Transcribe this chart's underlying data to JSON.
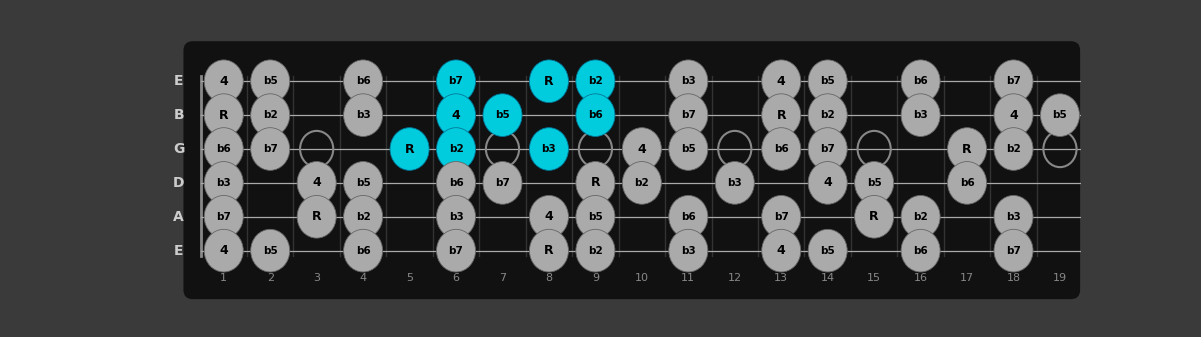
{
  "bg_color": "#3a3a3a",
  "fretboard_color": "#111111",
  "border_color": "#555555",
  "string_color": "#aaaaaa",
  "fret_color": "#333333",
  "note_gray": "#aaaaaa",
  "note_cyan": "#00ccdd",
  "note_text": "#000000",
  "open_circle_edge": "#888888",
  "string_label_color": "#cccccc",
  "fret_label_color": "#888888",
  "strings_display": [
    "E",
    "B",
    "G",
    "D",
    "A",
    "E"
  ],
  "n_frets": 19,
  "notes_by_string": {
    "0": {
      "1": "4",
      "2": "b5",
      "4": "b6",
      "6": "b7",
      "8": "R",
      "9": "b2",
      "11": "b3",
      "13": "4",
      "14": "b5",
      "16": "b6",
      "18": "b7"
    },
    "1": {
      "1": "R",
      "2": "b2",
      "4": "b3",
      "6": "4",
      "7": "b5",
      "9": "b6",
      "11": "b7",
      "13": "R",
      "14": "b2",
      "16": "b3",
      "18": "4",
      "19": "b5"
    },
    "2": {
      "1": "b6",
      "2": "b7",
      "5": "R",
      "6": "b2",
      "8": "b3",
      "10": "4",
      "11": "b5",
      "13": "b6",
      "14": "b7",
      "17": "R",
      "18": "b2"
    },
    "3": {
      "1": "b3",
      "3": "4",
      "4": "b5",
      "6": "b6",
      "7": "b7",
      "9": "R",
      "10": "b2",
      "12": "b3",
      "14": "4",
      "15": "b5",
      "17": "b6"
    },
    "4": {
      "1": "b7",
      "3": "R",
      "4": "b2",
      "6": "b3",
      "8": "4",
      "9": "b5",
      "11": "b6",
      "13": "b7",
      "15": "R",
      "16": "b2",
      "18": "b3"
    },
    "5": {
      "1": "4",
      "2": "b5",
      "4": "b6",
      "6": "b7",
      "8": "R",
      "9": "b2",
      "11": "b3",
      "13": "4",
      "14": "b5",
      "16": "b6",
      "18": "b7"
    }
  },
  "cyan_notes": {
    "0": [
      6,
      8,
      9
    ],
    "1": [
      6,
      7,
      9
    ],
    "2": [
      5,
      6,
      8
    ],
    "3": [],
    "4": [],
    "5": []
  },
  "open_circle_frets_g": [
    3,
    5,
    7,
    9,
    12,
    15,
    17,
    19
  ],
  "open_circle_frets_d": [
    12,
    17
  ]
}
